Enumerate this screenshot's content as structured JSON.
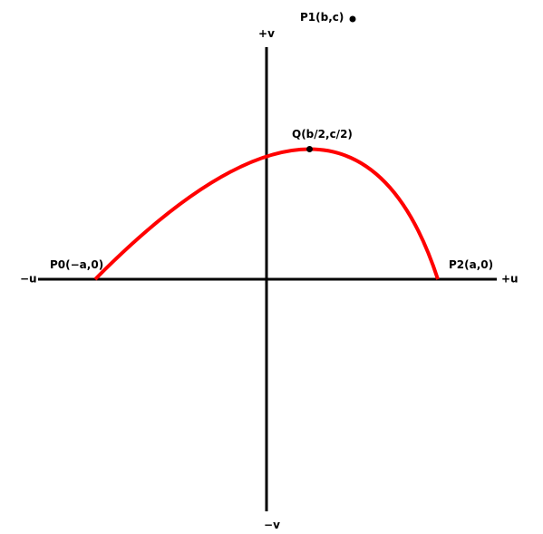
{
  "axes": {
    "u_positive_label": "+u",
    "u_negative_label": "−u",
    "v_positive_label": "+v",
    "v_negative_label": "−v",
    "axis_color": "#000000"
  },
  "curve": {
    "type": "quadratic-bezier",
    "color": "#ff0000"
  },
  "points": {
    "p0": {
      "label": "P0(−a,0)"
    },
    "p1": {
      "label": "P1(b,c)"
    },
    "p2": {
      "label": "P2(a,0)"
    },
    "q": {
      "label": "Q(b/2,c/2)"
    }
  }
}
